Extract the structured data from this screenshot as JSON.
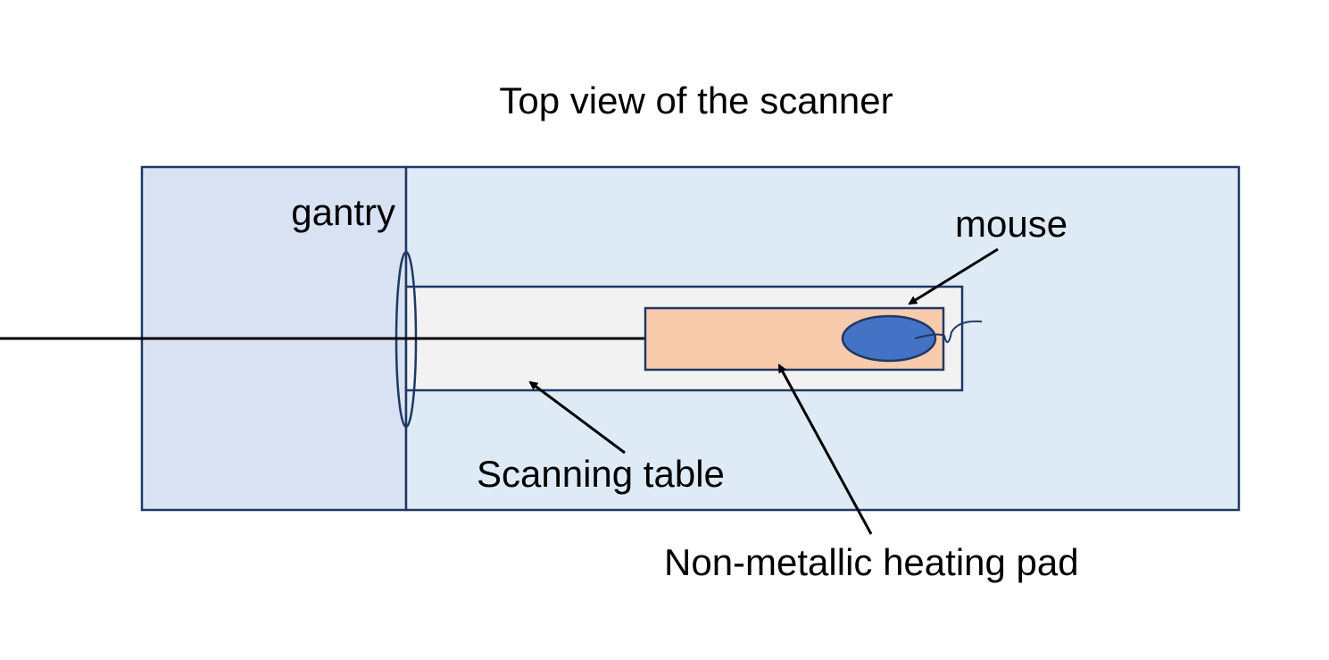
{
  "title": "Top view of the scanner",
  "labels": {
    "gantry": "gantry",
    "mouse": "mouse",
    "scanning_table": "Scanning table",
    "heating_pad": "Non-metallic heating pad"
  },
  "colors": {
    "gantry_region": "#D9E2F3",
    "scanner_bed_region": "#DEEBF7",
    "outline": "#1F3864",
    "scanning_table": "#F2F2F2",
    "heating_pad": "#F8CBAD",
    "mouse_body": "#4472C4",
    "line": "#000000"
  }
}
